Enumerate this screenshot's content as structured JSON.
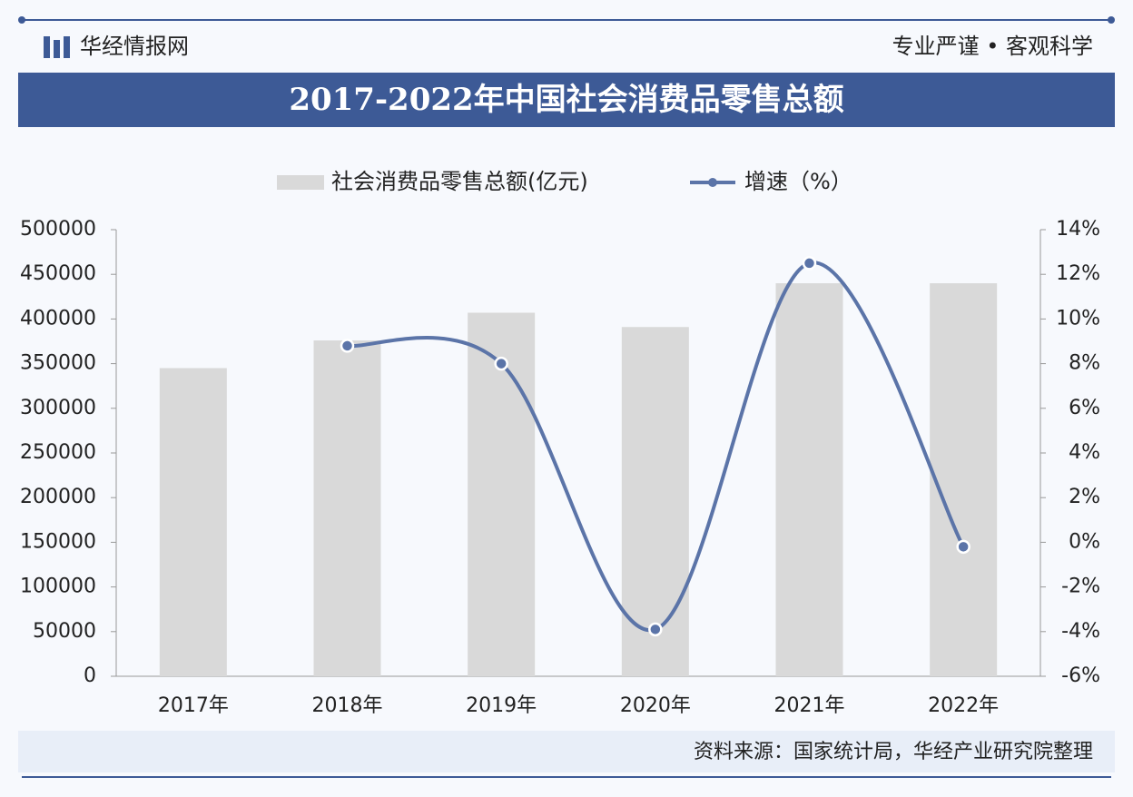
{
  "header": {
    "brand": "华经情报网",
    "slogan": "专业严谨 • 客观科学"
  },
  "chart_data": {
    "type": "bar-line",
    "title": "2017-2022年中国社会消费品零售总额",
    "categories": [
      "2017年",
      "2018年",
      "2019年",
      "2020年",
      "2021年",
      "2022年"
    ],
    "series": [
      {
        "name": "社会消费品零售总额(亿元)",
        "color": "#d9d9d9",
        "type": "bar",
        "values": [
          345000,
          376000,
          407000,
          391000,
          440000,
          440000
        ]
      },
      {
        "name": "增速（%）",
        "color": "#5b74a8",
        "type": "line",
        "axis": "y2",
        "values": [
          null,
          8.8,
          8.0,
          -3.9,
          12.5,
          -0.2
        ]
      }
    ],
    "ylim": [
      0,
      500000
    ],
    "yticks": [
      0,
      50000,
      100000,
      150000,
      200000,
      250000,
      300000,
      350000,
      400000,
      450000,
      500000
    ],
    "y2lim": [
      -6,
      14
    ],
    "y2ticks": [
      {
        "value": -6,
        "label": "-6%"
      },
      {
        "value": -4,
        "label": "-4%"
      },
      {
        "value": -2,
        "label": "-2%"
      },
      {
        "value": 0,
        "label": "0%"
      },
      {
        "value": 2,
        "label": "2%"
      },
      {
        "value": 4,
        "label": "4%"
      },
      {
        "value": 6,
        "label": "6%"
      },
      {
        "value": 8,
        "label": "8%"
      },
      {
        "value": 10,
        "label": "10%"
      },
      {
        "value": 12,
        "label": "12%"
      },
      {
        "value": 14,
        "label": "14%"
      }
    ],
    "legend": "top"
  },
  "source": "资料来源：国家统计局，华经产业研究院整理"
}
